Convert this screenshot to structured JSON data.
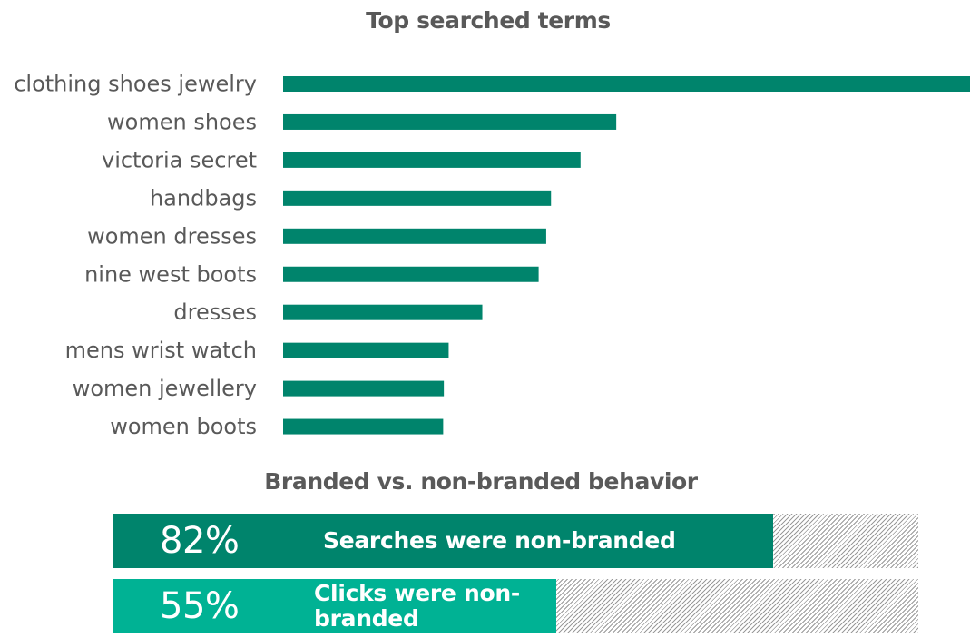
{
  "chart_data": [
    {
      "type": "bar",
      "orientation": "horizontal",
      "title": "Top searched terms",
      "categories": [
        "clothing shoes jewelry",
        "women shoes",
        "victoria secret",
        "handbags",
        "women dresses",
        "nine west boots",
        "dresses",
        "mens wrist watch",
        "women jewellery",
        "women boots"
      ],
      "values": [
        100,
        48.5,
        43.3,
        39.0,
        38.3,
        37.2,
        29.0,
        24.1,
        23.4,
        23.3
      ],
      "xlim": [
        0,
        100
      ],
      "grid": false,
      "color": "#00846c"
    },
    {
      "type": "bar",
      "orientation": "horizontal",
      "stacked": true,
      "title": "Branded vs. non-branded behavior",
      "categories": [
        "Searches were non-branded",
        "Clicks were non-branded"
      ],
      "values": [
        82,
        55
      ],
      "value_labels": [
        "82%",
        "55%"
      ],
      "xlim": [
        0,
        100
      ],
      "colors": [
        "#00846c",
        "#00b294"
      ],
      "remainder_fill": "hatched-gray"
    }
  ],
  "stats": [
    {
      "percent": "82%",
      "text": "Searches were non-branded",
      "value": 82,
      "color": "#00846c"
    },
    {
      "percent": "55%",
      "text": "Clicks were non-branded",
      "value": 55,
      "color": "#00b294"
    }
  ]
}
